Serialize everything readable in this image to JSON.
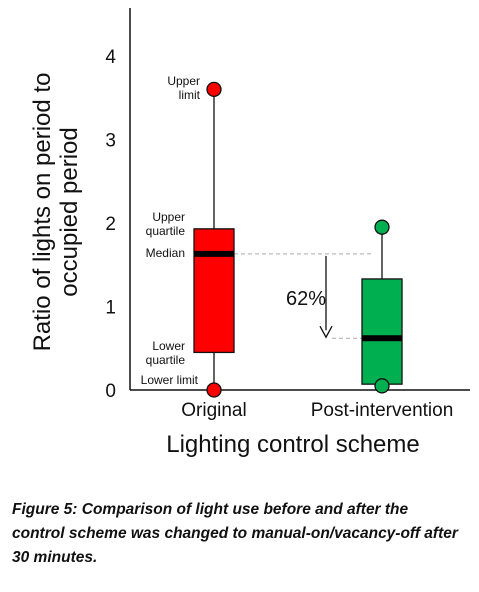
{
  "chart_data": {
    "type": "box",
    "xlabel": "Lighting control scheme",
    "ylabel_lines": [
      "Ratio of lights on period to",
      "occupied period"
    ],
    "ylim": [
      0,
      4.5
    ],
    "yticks": [
      0,
      1,
      2,
      3,
      4
    ],
    "categories": [
      "Original",
      "Post-intervention"
    ],
    "boxes": [
      {
        "category": "Original",
        "min": 0.0,
        "q1": 0.45,
        "median": 1.63,
        "q3": 1.93,
        "max": 3.6,
        "color": "#ff0000"
      },
      {
        "category": "Post-intervention",
        "min": 0.05,
        "q1": 0.07,
        "median": 0.62,
        "q3": 1.33,
        "max": 1.95,
        "color": "#00b050"
      }
    ],
    "annotations": {
      "upper_limit": [
        "Upper",
        "limit"
      ],
      "upper_quartile": [
        "Upper",
        "quartile"
      ],
      "median": "Median",
      "lower_quartile": [
        "Lower",
        "quartile"
      ],
      "lower_limit": "Lower limit",
      "reduction": "62%"
    }
  },
  "caption": "Figure 5: Comparison of light use before and after the control scheme was changed to manual-on/vacancy-off after 30 minutes."
}
